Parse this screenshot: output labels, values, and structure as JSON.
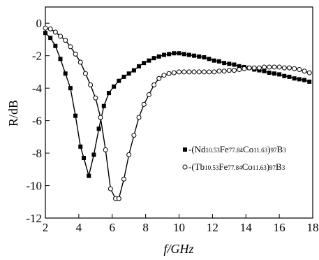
{
  "chart_data": {
    "type": "line",
    "xlabel": "f/GHz",
    "ylabel": "R/dB",
    "xlim": [
      2,
      18
    ],
    "ylim": [
      -12,
      1
    ],
    "xticks": [
      2,
      4,
      6,
      8,
      10,
      12,
      14,
      16,
      18
    ],
    "yticks": [
      0,
      -2,
      -4,
      -6,
      -8,
      -10,
      -12
    ],
    "legend_position": "right-middle",
    "series": [
      {
        "name": "-(Nd10.53Fe77.84Co11.63)97B3",
        "name_parts": [
          {
            "t": "-(Nd",
            "sub": false
          },
          {
            "t": "10.53",
            "sub": true
          },
          {
            "t": "Fe",
            "sub": false
          },
          {
            "t": "77.84",
            "sub": true
          },
          {
            "t": "Co",
            "sub": false
          },
          {
            "t": "11.63",
            "sub": true
          },
          {
            "t": ")",
            "sub": false
          },
          {
            "t": "97",
            "sub": true
          },
          {
            "t": "B",
            "sub": false
          },
          {
            "t": "3",
            "sub": true
          }
        ],
        "marker": "filled-square",
        "color": "#000000",
        "x": [
          2.0,
          2.3,
          2.6,
          2.9,
          3.2,
          3.5,
          3.8,
          4.1,
          4.3,
          4.6,
          4.9,
          5.2,
          5.5,
          5.8,
          6.1,
          6.4,
          6.7,
          7.0,
          7.3,
          7.6,
          7.9,
          8.2,
          8.5,
          8.8,
          9.1,
          9.4,
          9.7,
          10.0,
          10.3,
          10.6,
          10.9,
          11.2,
          11.5,
          11.8,
          12.1,
          12.4,
          12.7,
          13.0,
          13.3,
          13.6,
          13.9,
          14.2,
          14.5,
          14.8,
          15.1,
          15.4,
          15.7,
          16.0,
          16.3,
          16.6,
          16.9,
          17.2,
          17.5,
          17.8
        ],
        "y": [
          -0.6,
          -0.9,
          -1.4,
          -2.2,
          -3.1,
          -4.0,
          -5.7,
          -7.6,
          -8.3,
          -9.4,
          -8.1,
          -6.5,
          -5.1,
          -4.3,
          -3.9,
          -3.55,
          -3.3,
          -3.1,
          -2.9,
          -2.65,
          -2.45,
          -2.3,
          -2.15,
          -2.05,
          -1.95,
          -1.9,
          -1.85,
          -1.85,
          -1.9,
          -1.95,
          -2.0,
          -2.05,
          -2.1,
          -2.2,
          -2.3,
          -2.35,
          -2.45,
          -2.5,
          -2.55,
          -2.65,
          -2.7,
          -2.75,
          -2.85,
          -2.9,
          -2.95,
          -3.05,
          -3.1,
          -3.15,
          -3.25,
          -3.3,
          -3.4,
          -3.45,
          -3.5,
          -3.6
        ]
      },
      {
        "name": "-(Tb10.53Fe77.84Co11.63)97B3",
        "name_parts": [
          {
            "t": "-(Tb",
            "sub": false
          },
          {
            "t": "10.53",
            "sub": true
          },
          {
            "t": "Fe",
            "sub": false
          },
          {
            "t": "77.84",
            "sub": true
          },
          {
            "t": "Co",
            "sub": false
          },
          {
            "t": "11.63",
            "sub": true
          },
          {
            "t": ")",
            "sub": false
          },
          {
            "t": "97",
            "sub": true
          },
          {
            "t": "B",
            "sub": false
          },
          {
            "t": "3",
            "sub": true
          }
        ],
        "marker": "open-circle",
        "color": "#000000",
        "x": [
          2.0,
          2.3,
          2.6,
          2.9,
          3.2,
          3.5,
          3.8,
          4.1,
          4.4,
          4.7,
          5.0,
          5.3,
          5.6,
          5.9,
          6.2,
          6.4,
          6.7,
          7.0,
          7.3,
          7.6,
          7.9,
          8.2,
          8.5,
          8.8,
          9.1,
          9.4,
          9.7,
          10.0,
          10.3,
          10.6,
          10.9,
          11.2,
          11.5,
          11.8,
          12.1,
          12.4,
          12.7,
          13.0,
          13.3,
          13.6,
          13.9,
          14.2,
          14.5,
          14.8,
          15.1,
          15.4,
          15.7,
          16.0,
          16.3,
          16.6,
          16.9,
          17.2,
          17.5,
          17.8
        ],
        "y": [
          -0.3,
          -0.35,
          -0.55,
          -0.8,
          -1.05,
          -1.45,
          -1.9,
          -2.4,
          -3.1,
          -3.8,
          -4.6,
          -5.8,
          -7.8,
          -10.2,
          -10.8,
          -10.8,
          -9.6,
          -8.1,
          -6.9,
          -5.8,
          -5.0,
          -4.4,
          -3.8,
          -3.4,
          -3.2,
          -3.1,
          -3.05,
          -3.0,
          -3.0,
          -3.0,
          -3.0,
          -3.0,
          -3.0,
          -3.0,
          -3.0,
          -2.95,
          -2.95,
          -2.9,
          -2.9,
          -2.85,
          -2.8,
          -2.75,
          -2.75,
          -2.75,
          -2.7,
          -2.7,
          -2.7,
          -2.7,
          -2.75,
          -2.75,
          -2.8,
          -2.85,
          -2.95,
          -3.05
        ]
      }
    ]
  }
}
